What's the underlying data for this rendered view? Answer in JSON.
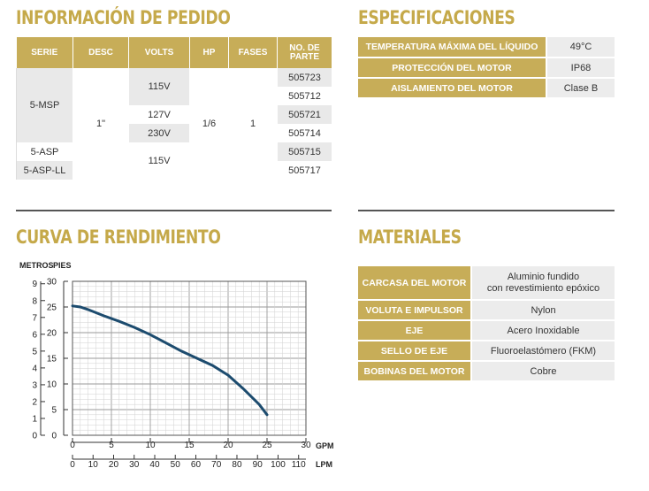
{
  "order_section": {
    "title": "INFORMACIÓN DE PEDIDO",
    "headers": [
      "SERIE",
      "DESC",
      "VOLTS",
      "HP",
      "FASES",
      "NO. DE PARTE"
    ],
    "series": [
      "5-MSP",
      "5-ASP",
      "5-ASP-LL"
    ],
    "desc": "1\"",
    "volts": [
      "115V",
      "127V",
      "230V",
      "115V"
    ],
    "hp": "1/6",
    "fases": "1",
    "parts": [
      "505723",
      "505712",
      "505721",
      "505714",
      "505715",
      "505717"
    ]
  },
  "spec_section": {
    "title": "ESPECIFICACIONES",
    "rows": [
      {
        "label": "TEMPERATURA MÁXIMA DEL LÍQUIDO",
        "value": "49°C"
      },
      {
        "label": "PROTECCIÓN DEL MOTOR",
        "value": "IP68"
      },
      {
        "label": "AISLAMIENTO DEL MOTOR",
        "value": "Clase B"
      }
    ]
  },
  "curve_section": {
    "title": "CURVA DE RENDIMIENTO"
  },
  "materials_section": {
    "title": "MATERIALES",
    "rows": [
      {
        "label": "CARCASA DEL MOTOR",
        "value_line1": "Aluminio fundido",
        "value_line2": "con revestimiento epóxico"
      },
      {
        "label": "VOLUTA E IMPULSOR",
        "value_line1": "Nylon",
        "value_line2": ""
      },
      {
        "label": "EJE",
        "value_line1": "Acero Inoxidable",
        "value_line2": ""
      },
      {
        "label": "SELLO DE EJE",
        "value_line1": "Fluoroelastómero (FKM)",
        "value_line2": ""
      },
      {
        "label": "BOBINAS DEL MOTOR",
        "value_line1": "Cobre",
        "value_line2": ""
      }
    ]
  },
  "colors": {
    "gold": "#c7ad58",
    "title_gold": "#c5a94a",
    "curve": "#1c4b6e",
    "row_gray": "#e9e9e9"
  },
  "chart_data": {
    "type": "line",
    "title": "",
    "ylabel_metros": "METROS",
    "ylabel_pies": "PIES",
    "xlabel_gpm": "GPM",
    "xlabel_lpm": "LPM",
    "metros_ticks": [
      "9",
      "8",
      "7",
      "6",
      "5",
      "4",
      "3",
      "2",
      "1",
      "0"
    ],
    "pies_ticks": [
      "30",
      "25",
      "20",
      "15",
      "10",
      "5",
      "0"
    ],
    "gpm_ticks": [
      "0",
      "5",
      "10",
      "15",
      "20",
      "25",
      "30"
    ],
    "lpm_ticks": [
      "0",
      "10",
      "20",
      "30",
      "40",
      "50",
      "60",
      "70",
      "80",
      "90",
      "100",
      "110"
    ],
    "xlim_gpm": [
      0,
      30
    ],
    "ylim_pies": [
      0,
      30
    ],
    "grid": true,
    "series": [
      {
        "x": [
          0,
          1,
          2,
          4,
          6,
          8,
          10,
          12,
          14,
          16,
          18,
          20,
          22,
          24,
          25
        ],
        "y": [
          25.2,
          25.0,
          24.5,
          23.3,
          22.2,
          21.0,
          19.6,
          18.0,
          16.4,
          15.0,
          13.6,
          11.7,
          9.0,
          6.0,
          4.0
        ]
      }
    ]
  }
}
